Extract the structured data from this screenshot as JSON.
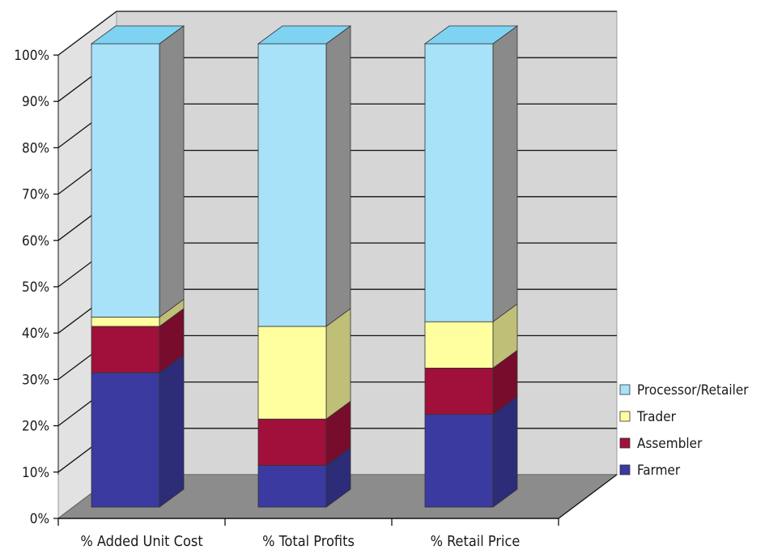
{
  "chart_data": {
    "type": "bar",
    "stacked": true,
    "three_d": true,
    "categories": [
      "% Added Unit Cost",
      "% Total Profits",
      "% Retail Price"
    ],
    "series": [
      {
        "name": "Farmer",
        "color": "#3a3aa0",
        "values": [
          29,
          9,
          20
        ]
      },
      {
        "name": "Assembler",
        "color": "#a0103a",
        "values": [
          10,
          10,
          10
        ]
      },
      {
        "name": "Trader",
        "color": "#ffffa0",
        "values": [
          2,
          20,
          10
        ]
      },
      {
        "name": "Processor/Retailer",
        "color": "#a8e2f8",
        "values": [
          59,
          61,
          60
        ]
      }
    ],
    "y_ticks": [
      "0%",
      "10%",
      "20%",
      "30%",
      "40%",
      "50%",
      "60%",
      "70%",
      "80%",
      "90%",
      "100%"
    ],
    "ylim": [
      0,
      100
    ],
    "grid": true,
    "legend_position": "right",
    "legend_order": [
      "Processor/Retailer",
      "Trader",
      "Assembler",
      "Farmer"
    ]
  }
}
